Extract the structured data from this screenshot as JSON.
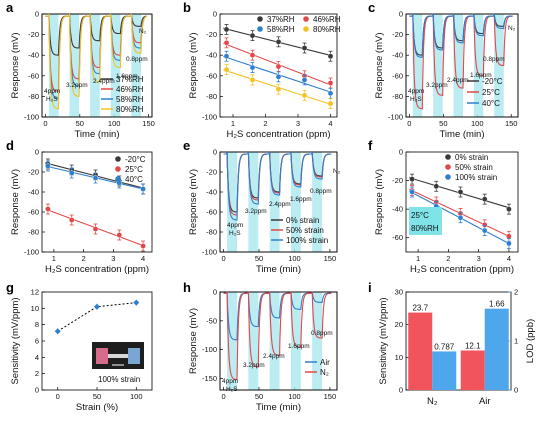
{
  "colors": {
    "black": "#3a3a3a",
    "red": "#e2474a",
    "blue": "#2f7fcf",
    "yellow": "#f2c220",
    "shade": "#aee9ee",
    "barRed": "#f2545b",
    "barBlue": "#4ea6ec",
    "boxHighlight": "#7fe3e8"
  },
  "chart_data": [
    {
      "panel": "a",
      "type": "line",
      "xlabel": "Time (min)",
      "ylabel": "Response (mV)",
      "xlim": [
        -5,
        155
      ],
      "ylim": [
        -100,
        0
      ],
      "xticks": [
        0,
        50,
        100,
        150
      ],
      "yticks": [
        0,
        -20,
        -40,
        -60,
        -80,
        -100
      ],
      "xtick_labels": [
        "0",
        "50",
        "100",
        "150"
      ],
      "ytick_labels": [
        "0",
        "-20",
        "-40",
        "-60",
        "-80",
        "-100"
      ],
      "pulse_starts": [
        5,
        35,
        65,
        95,
        125
      ],
      "pulse_width": 14,
      "annotations": [
        "4ppm",
        "H₂S",
        "3.2ppm",
        "2.4ppm",
        "1.6ppm",
        "0.8ppm",
        "N₂"
      ],
      "series": [
        {
          "name": "37%RH",
          "color": "black",
          "peaks": [
            -40,
            -33,
            -26,
            -19,
            -12
          ]
        },
        {
          "name": "46%RH",
          "color": "red",
          "peaks": [
            -75,
            -63,
            -52,
            -40,
            -28
          ]
        },
        {
          "name": "58%RH",
          "color": "blue",
          "peaks": [
            -82,
            -70,
            -58,
            -45,
            -33
          ]
        },
        {
          "name": "80%RH",
          "color": "yellow",
          "peaks": [
            -92,
            -80,
            -66,
            -52,
            -38
          ]
        }
      ]
    },
    {
      "panel": "b",
      "type": "scatter",
      "xlabel": "H₂S concentration (ppm)",
      "ylabel": "Response (mV)",
      "xlim": [
        0.6,
        4.2
      ],
      "ylim": [
        -100,
        0
      ],
      "xticks": [
        1,
        2,
        3,
        4
      ],
      "yticks": [
        0,
        -20,
        -40,
        -60,
        -80,
        -100
      ],
      "xtick_labels": [
        "1",
        "2",
        "3",
        "4"
      ],
      "ytick_labels": [
        "0",
        "-20",
        "-40",
        "-60",
        "-80",
        "-100"
      ],
      "x": [
        0.8,
        1.6,
        2.4,
        3.2,
        4.0
      ],
      "series": [
        {
          "name": "37%RH",
          "color": "black",
          "values": [
            -15,
            -21,
            -27,
            -33,
            -41
          ]
        },
        {
          "name": "46%RH",
          "color": "red",
          "values": [
            -28,
            -40,
            -51,
            -60,
            -67
          ]
        },
        {
          "name": "58%RH",
          "color": "blue",
          "values": [
            -41,
            -52,
            -61,
            -64,
            -77
          ]
        },
        {
          "name": "80%RH",
          "color": "yellow",
          "values": [
            -54,
            -64,
            -73,
            -79,
            -87
          ]
        }
      ]
    },
    {
      "panel": "c",
      "type": "line",
      "xlabel": "Time (min)",
      "ylabel": "Response (mV)",
      "xlim": [
        -5,
        160
      ],
      "ylim": [
        -100,
        0
      ],
      "xticks": [
        0,
        50,
        100,
        150
      ],
      "yticks": [
        0,
        -20,
        -40,
        -60,
        -80,
        -100
      ],
      "xtick_labels": [
        "0",
        "50",
        "100",
        "150"
      ],
      "ytick_labels": [
        "0",
        "-20",
        "-40",
        "-60",
        "-80",
        "-100"
      ],
      "pulse_starts": [
        5,
        35,
        65,
        95,
        125
      ],
      "pulse_width": 14,
      "annotations": [
        "4ppm",
        "H₂S",
        "3.2ppm",
        "2.4ppm",
        "1.6ppm",
        "0.8ppm",
        "N₂"
      ],
      "series": [
        {
          "name": "-20°C",
          "color": "black",
          "peaks": [
            -40,
            -33,
            -26,
            -19,
            -12
          ]
        },
        {
          "name": "25°C",
          "color": "red",
          "peaks": [
            -92,
            -79,
            -72,
            -60,
            -50
          ]
        },
        {
          "name": "40°C",
          "color": "blue",
          "peaks": [
            -42,
            -35,
            -28,
            -21,
            -14
          ]
        }
      ]
    },
    {
      "panel": "d",
      "type": "scatter",
      "xlabel": "H₂S concentration (ppm)",
      "ylabel": "Response (mV)",
      "xlim": [
        0.6,
        4.3
      ],
      "ylim": [
        -100,
        0
      ],
      "xticks": [
        1,
        2,
        3,
        4
      ],
      "yticks": [
        0,
        -20,
        -40,
        -60,
        -80,
        -100
      ],
      "xtick_labels": [
        "1",
        "2",
        "3",
        "4"
      ],
      "ytick_labels": [
        "0",
        "-20",
        "-40",
        "-60",
        "-80",
        "-100"
      ],
      "x": [
        0.8,
        1.6,
        2.4,
        3.2,
        4.0
      ],
      "series": [
        {
          "name": "-20°C",
          "color": "black",
          "values": [
            -12,
            -18,
            -23,
            -29,
            -37
          ]
        },
        {
          "name": "25°C",
          "color": "red",
          "values": [
            -57,
            -68,
            -77,
            -83,
            -94
          ]
        },
        {
          "name": "40°C",
          "color": "blue",
          "values": [
            -14,
            -21,
            -26,
            -31,
            -37
          ]
        }
      ]
    },
    {
      "panel": "e",
      "type": "line",
      "xlabel": "Time (min)",
      "ylabel": "Response (mV)",
      "xlim": [
        -5,
        160
      ],
      "ylim": [
        -100,
        0
      ],
      "xticks": [
        0,
        50,
        100,
        150
      ],
      "yticks": [
        0,
        -20,
        -40,
        -60,
        -80,
        -100
      ],
      "xtick_labels": [
        "0",
        "50",
        "100",
        "150"
      ],
      "ytick_labels": [
        "0",
        "-20",
        "-40",
        "-60",
        "-80",
        "-100"
      ],
      "pulse_starts": [
        5,
        35,
        65,
        95,
        125
      ],
      "pulse_width": 14,
      "annotations": [
        "4ppm",
        "H₂S",
        "3.2ppm",
        "2.4ppm",
        "1.6ppm",
        "0.8ppm",
        "N₂"
      ],
      "series": [
        {
          "name": "0% strain",
          "color": "black",
          "peaks": [
            -60,
            -46,
            -40,
            -32,
            -24
          ]
        },
        {
          "name": "50% strain",
          "color": "red",
          "peaks": [
            -63,
            -48,
            -41,
            -33,
            -25
          ]
        },
        {
          "name": "100% strain",
          "color": "blue",
          "peaks": [
            -68,
            -52,
            -43,
            -35,
            -27
          ]
        }
      ]
    },
    {
      "panel": "f",
      "type": "scatter",
      "xlabel": "H₂S concentration (ppm)",
      "ylabel": "Response (mV)",
      "xlim": [
        0.6,
        4.3
      ],
      "ylim": [
        -70,
        0
      ],
      "xticks": [
        1,
        2,
        3,
        4
      ],
      "yticks": [
        0,
        -20,
        -40,
        -60
      ],
      "xtick_labels": [
        "1",
        "2",
        "3",
        "4"
      ],
      "ytick_labels": [
        "0",
        "-20",
        "-40",
        "-60"
      ],
      "x": [
        0.8,
        1.6,
        2.4,
        3.2,
        4.0
      ],
      "box_text": [
        "25°C",
        "80%RH"
      ],
      "series": [
        {
          "name": "0% strain",
          "color": "black",
          "values": [
            -19,
            -24,
            -28,
            -33,
            -40
          ]
        },
        {
          "name": "50% strain",
          "color": "red",
          "values": [
            -27,
            -35,
            -43,
            -51,
            -59
          ]
        },
        {
          "name": "100% strain",
          "color": "blue",
          "values": [
            -28,
            -38,
            -46,
            -55,
            -64
          ]
        }
      ]
    },
    {
      "panel": "g",
      "type": "scatter",
      "xlabel": "Strain (%)",
      "ylabel": "Sensitivity (mV/ppm)",
      "xlim": [
        -20,
        120
      ],
      "ylim": [
        0,
        12
      ],
      "xticks": [
        0,
        50,
        100
      ],
      "yticks": [
        0,
        2,
        4,
        6,
        8,
        10,
        12
      ],
      "xtick_labels": [
        "0",
        "50",
        "100"
      ],
      "ytick_labels": [
        "0",
        "2",
        "4",
        "6",
        "8",
        "10",
        "12"
      ],
      "inset_label": "100% strain",
      "series": [
        {
          "color": "blue",
          "x": [
            0,
            50,
            100
          ],
          "values": [
            7.2,
            10.2,
            10.7
          ]
        }
      ]
    },
    {
      "panel": "h",
      "type": "line",
      "xlabel": "Time (min)",
      "ylabel": "Response (mV)",
      "xlim": [
        -5,
        160
      ],
      "ylim": [
        -170,
        0
      ],
      "xticks": [
        0,
        50,
        100,
        150
      ],
      "yticks": [
        0,
        -50,
        -100,
        -150
      ],
      "xtick_labels": [
        "0",
        "50",
        "100",
        "150"
      ],
      "ytick_labels": [
        "0",
        "-50",
        "-100",
        "-150"
      ],
      "pulse_starts": [
        5,
        35,
        65,
        95,
        125
      ],
      "pulse_width": 14,
      "annotations": [
        "4ppm",
        "H₂S",
        "3.2ppm",
        "2.4ppm",
        "1.6ppm",
        "0.8ppm"
      ],
      "series": [
        {
          "name": "Air",
          "color": "blue",
          "peaks": [
            -83,
            -60,
            -45,
            -30,
            -18
          ]
        },
        {
          "name": "N₂",
          "color": "red",
          "peaks": [
            -152,
            -130,
            -110,
            -96,
            -80
          ]
        }
      ]
    },
    {
      "panel": "i",
      "type": "bar",
      "categories": [
        "N₂",
        "Air"
      ],
      "ylabel": "Sensitivity (mV/ppm)",
      "ylabel2": "LOD (ppb)",
      "ylim": [
        0,
        30
      ],
      "ylim2": [
        0,
        2
      ],
      "yticks": [
        0,
        10,
        20,
        30
      ],
      "yticks2": [
        0,
        1,
        2
      ],
      "ytick_labels": [
        "0",
        "10",
        "20",
        "30"
      ],
      "ytick_labels2": [
        "0",
        "1",
        "2"
      ],
      "series": [
        {
          "name": "Sensitivity",
          "color": "barRed",
          "values": [
            23.7,
            12.1
          ],
          "labels": [
            "23.7",
            "12.1"
          ]
        },
        {
          "name": "LOD",
          "color": "barBlue",
          "values": [
            0.787,
            1.66
          ],
          "labels": [
            "0.787",
            "1.66"
          ],
          "axis": "right"
        }
      ]
    }
  ]
}
